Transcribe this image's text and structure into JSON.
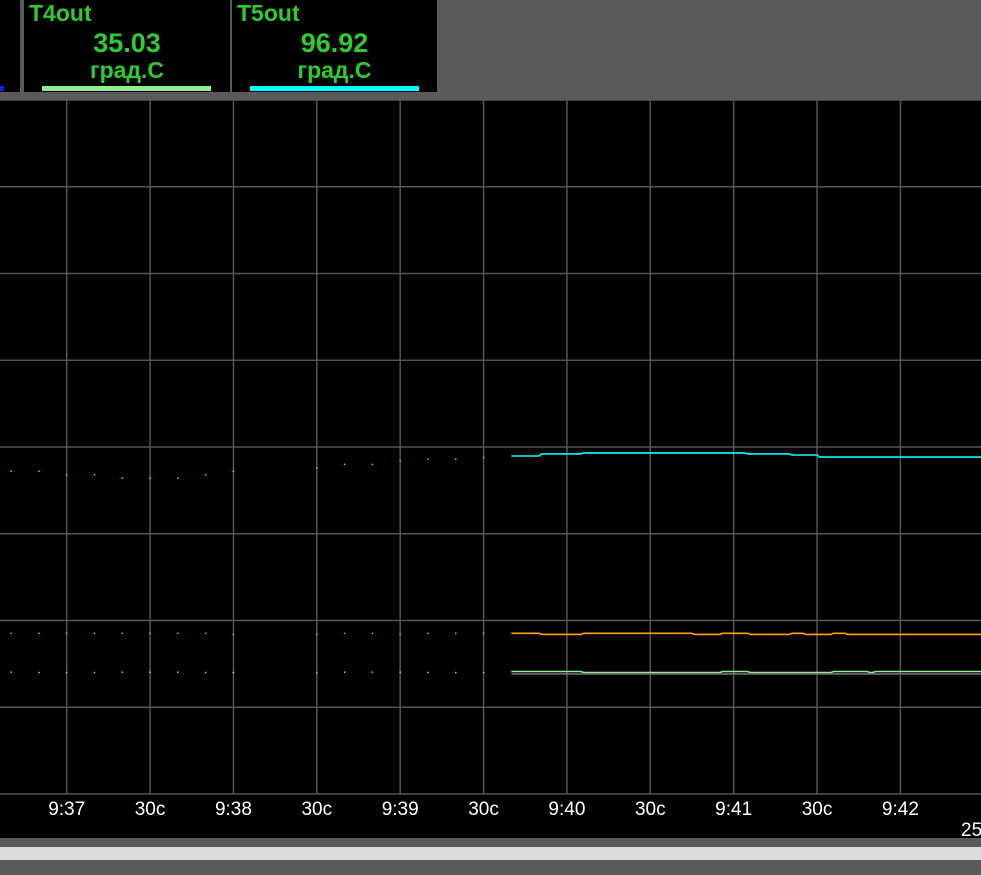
{
  "panels": [
    {
      "name": "T4out",
      "value": "35.03",
      "unit": "град.С",
      "color": "#90ee90"
    },
    {
      "name": "T5out",
      "value": "96.92",
      "unit": "град.С",
      "color": "#00ffff"
    }
  ],
  "chart_data": {
    "type": "line",
    "ylim": [
      0,
      200
    ],
    "y_tick_step": 25,
    "xlim": [
      "9:36:36",
      "9:42:29"
    ],
    "grid": true,
    "x_tick_labels": [
      "9:37",
      "30c",
      "9:38",
      "30c",
      "9:39",
      "30c",
      "9:40",
      "30c",
      "9:41",
      "30c",
      "9:42"
    ],
    "x_tick_times": [
      "9:37:00",
      "9:37:30",
      "9:38:00",
      "9:38:30",
      "9:39:00",
      "9:39:30",
      "9:40:00",
      "9:40:30",
      "9:41:00",
      "9:41:30",
      "9:42:00"
    ],
    "y_visible_label": "25",
    "series": [
      {
        "name": "T5out",
        "color": "#00ffff",
        "samples": [
          [
            "9:36:40",
            93
          ],
          [
            "9:36:50",
            93
          ],
          [
            "9:37:00",
            92
          ],
          [
            "9:37:10",
            92
          ],
          [
            "9:37:20",
            91
          ],
          [
            "9:37:30",
            91
          ],
          [
            "9:37:40",
            91
          ],
          [
            "9:37:50",
            92
          ],
          [
            "9:38:00",
            93
          ],
          [
            "9:38:30",
            94
          ],
          [
            "9:38:40",
            95
          ],
          [
            "9:38:50",
            95
          ],
          [
            "9:39:00",
            96
          ],
          [
            "9:39:10",
            96.5
          ],
          [
            "9:39:20",
            96.5
          ],
          [
            "9:39:30",
            97
          ]
        ],
        "trace": [
          [
            "9:39:40",
            97.4
          ],
          [
            "9:39:50",
            97.4
          ],
          [
            "9:39:51",
            98
          ],
          [
            "9:40:05",
            98
          ],
          [
            "9:40:06",
            98.3
          ],
          [
            "9:41:04",
            98.3
          ],
          [
            "9:41:05",
            98
          ],
          [
            "9:41:20",
            98
          ],
          [
            "9:41:21",
            97.7
          ],
          [
            "9:41:30",
            97.7
          ],
          [
            "9:41:31",
            97.1
          ],
          [
            "9:42:29",
            97.1
          ]
        ]
      },
      {
        "color": "#ffa020",
        "samples": [
          [
            "9:36:40",
            46.3
          ],
          [
            "9:36:50",
            46.3
          ],
          [
            "9:37:00",
            46.3
          ],
          [
            "9:37:10",
            46.3
          ],
          [
            "9:37:20",
            46.3
          ],
          [
            "9:37:30",
            46.3
          ],
          [
            "9:37:40",
            46.3
          ],
          [
            "9:37:50",
            46.3
          ],
          [
            "9:38:00",
            46
          ],
          [
            "9:38:30",
            46
          ],
          [
            "9:38:40",
            46.3
          ],
          [
            "9:38:50",
            46.3
          ],
          [
            "9:39:00",
            46
          ],
          [
            "9:39:10",
            46.3
          ],
          [
            "9:39:20",
            46.3
          ],
          [
            "9:39:30",
            46.3
          ]
        ],
        "trace": [
          [
            "9:39:40",
            46.3
          ],
          [
            "9:39:50",
            46.3
          ],
          [
            "9:39:51",
            46
          ],
          [
            "9:40:05",
            46
          ],
          [
            "9:40:06",
            46.3
          ],
          [
            "9:40:45",
            46.3
          ],
          [
            "9:40:46",
            46
          ],
          [
            "9:40:55",
            46
          ],
          [
            "9:40:56",
            46.3
          ],
          [
            "9:41:05",
            46.3
          ],
          [
            "9:41:06",
            46
          ],
          [
            "9:41:20",
            46
          ],
          [
            "9:41:21",
            46.3
          ],
          [
            "9:41:25",
            46.3
          ],
          [
            "9:41:26",
            46
          ],
          [
            "9:41:35",
            46
          ],
          [
            "9:41:36",
            46.3
          ],
          [
            "9:41:40",
            46.3
          ],
          [
            "9:41:41",
            46
          ],
          [
            "9:42:29",
            46
          ]
        ]
      },
      {
        "name": "T4out",
        "color": "#90ee90",
        "samples": [
          [
            "9:36:40",
            35.1
          ],
          [
            "9:36:50",
            35
          ],
          [
            "9:37:00",
            35
          ],
          [
            "9:37:10",
            35
          ],
          [
            "9:37:20",
            35.1
          ],
          [
            "9:37:30",
            35.1
          ],
          [
            "9:37:40",
            35.1
          ],
          [
            "9:37:50",
            35
          ],
          [
            "9:38:00",
            35
          ],
          [
            "9:38:30",
            35
          ],
          [
            "9:38:40",
            35.1
          ],
          [
            "9:38:50",
            35.1
          ],
          [
            "9:39:00",
            35.1
          ],
          [
            "9:39:10",
            35
          ],
          [
            "9:39:20",
            35
          ],
          [
            "9:39:30",
            35
          ]
        ],
        "trace": [
          [
            "9:39:40",
            35.3
          ],
          [
            "9:40:05",
            35.3
          ],
          [
            "9:40:06",
            35
          ],
          [
            "9:40:55",
            35
          ],
          [
            "9:40:56",
            35.3
          ],
          [
            "9:41:05",
            35.3
          ],
          [
            "9:41:06",
            35
          ],
          [
            "9:41:35",
            35
          ],
          [
            "9:41:36",
            35.3
          ],
          [
            "9:41:48",
            35.3
          ],
          [
            "9:41:49",
            35
          ],
          [
            "9:41:50",
            35
          ],
          [
            "9:41:51",
            35.3
          ],
          [
            "9:42:29",
            35.3
          ]
        ]
      },
      {
        "color": "#707070",
        "trace": [
          [
            "9:39:40",
            34.6
          ],
          [
            "9:42:29",
            34.6
          ]
        ]
      }
    ]
  }
}
